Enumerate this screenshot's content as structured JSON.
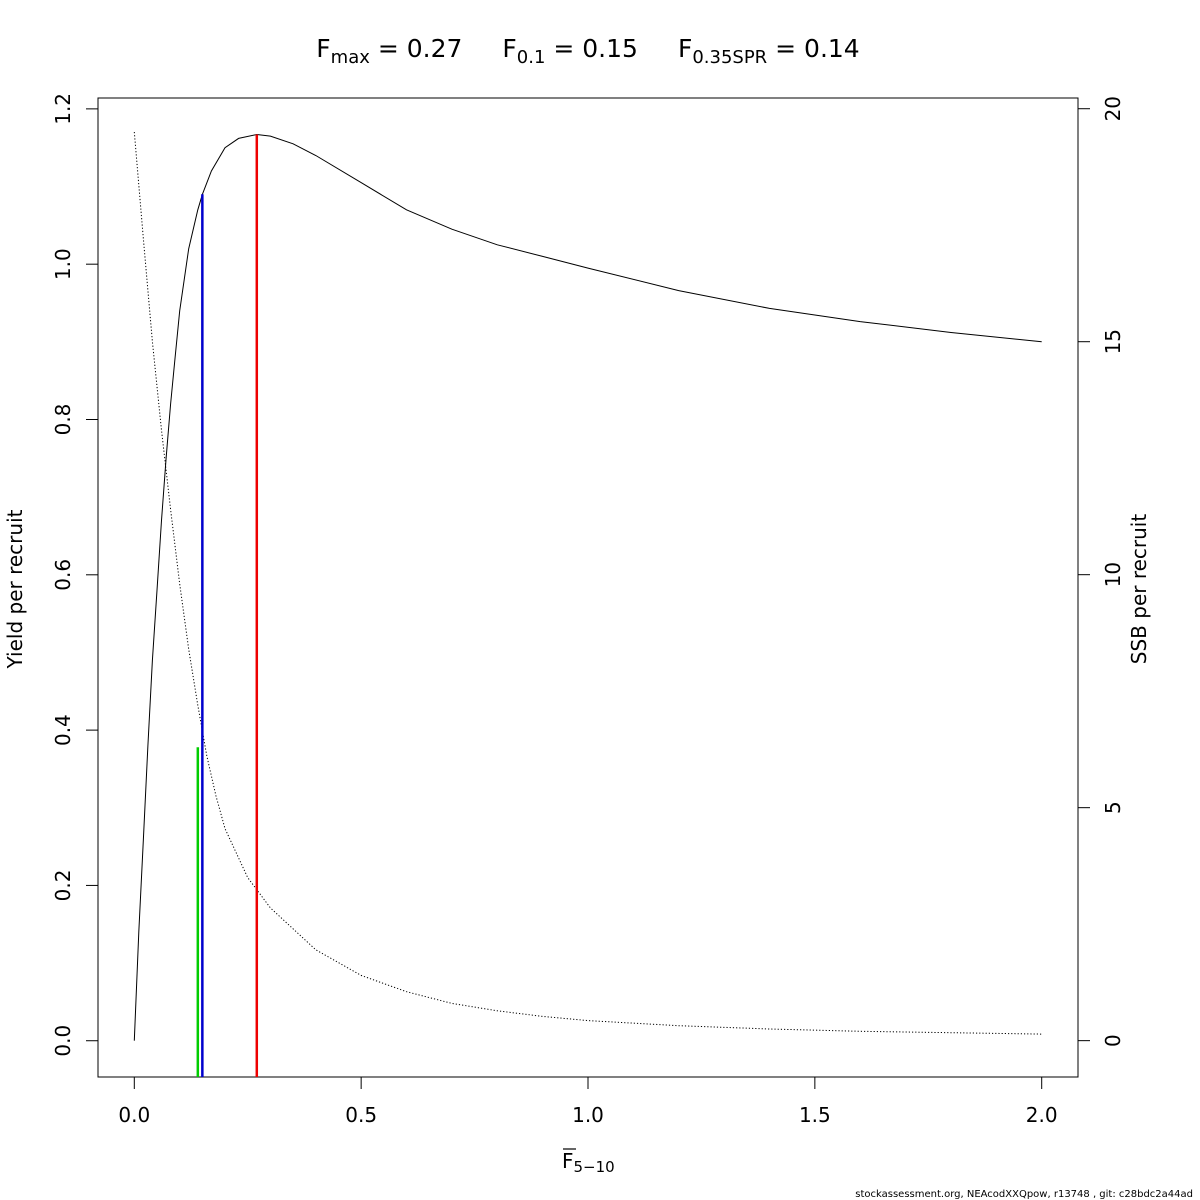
{
  "chart_data": {
    "type": "line",
    "title": {
      "fmax": {
        "main": "F",
        "sub": "max",
        "value": " = 0.27"
      },
      "f01": {
        "main": "F",
        "sub": "0.1",
        "value": " = 0.15"
      },
      "fspr": {
        "main": "F",
        "sub": "0.35SPR",
        "value": " = 0.14"
      }
    },
    "xlabel": {
      "main": "F",
      "sub": "5−10"
    },
    "ylabel": "Yield per recruit",
    "y2label": "SSB per recruit",
    "footer": "stockassessment.org, NEAcodXXQpow, r13748 , git: c28bdc2a44ad",
    "xlim": [
      -0.08,
      2.08
    ],
    "ylim": [
      -0.0467,
      1.214
    ],
    "y2lim": [
      -0.78,
      20.23
    ],
    "x_ticks": [
      {
        "value": 0.0,
        "label": "0.0"
      },
      {
        "value": 0.5,
        "label": "0.5"
      },
      {
        "value": 1.0,
        "label": "1.0"
      },
      {
        "value": 1.5,
        "label": "1.5"
      },
      {
        "value": 2.0,
        "label": "2.0"
      }
    ],
    "y_ticks": [
      {
        "value": 0.0,
        "label": "0.0"
      },
      {
        "value": 0.2,
        "label": "0.2"
      },
      {
        "value": 0.4,
        "label": "0.4"
      },
      {
        "value": 0.6,
        "label": "0.6"
      },
      {
        "value": 0.8,
        "label": "0.8"
      },
      {
        "value": 1.0,
        "label": "1.0"
      },
      {
        "value": 1.2,
        "label": "1.2"
      }
    ],
    "y2_ticks": [
      {
        "value": 0,
        "label": "0"
      },
      {
        "value": 5,
        "label": "5"
      },
      {
        "value": 10,
        "label": "10"
      },
      {
        "value": 15,
        "label": "15"
      },
      {
        "value": 20,
        "label": "20"
      }
    ],
    "series": [
      {
        "axis": "left",
        "style": "solid",
        "color": "#000000",
        "points": [
          [
            0.0,
            0.0
          ],
          [
            0.01,
            0.14
          ],
          [
            0.02,
            0.26
          ],
          [
            0.03,
            0.38
          ],
          [
            0.04,
            0.49
          ],
          [
            0.05,
            0.58
          ],
          [
            0.06,
            0.67
          ],
          [
            0.07,
            0.75
          ],
          [
            0.08,
            0.82
          ],
          [
            0.09,
            0.88
          ],
          [
            0.1,
            0.94
          ],
          [
            0.12,
            1.02
          ],
          [
            0.14,
            1.07
          ],
          [
            0.15,
            1.09
          ],
          [
            0.17,
            1.12
          ],
          [
            0.2,
            1.15
          ],
          [
            0.23,
            1.162
          ],
          [
            0.27,
            1.167
          ],
          [
            0.3,
            1.165
          ],
          [
            0.35,
            1.155
          ],
          [
            0.4,
            1.14
          ],
          [
            0.5,
            1.105
          ],
          [
            0.6,
            1.07
          ],
          [
            0.7,
            1.045
          ],
          [
            0.8,
            1.025
          ],
          [
            0.9,
            1.01
          ],
          [
            1.0,
            0.995
          ],
          [
            1.2,
            0.966
          ],
          [
            1.4,
            0.943
          ],
          [
            1.6,
            0.926
          ],
          [
            1.8,
            0.912
          ],
          [
            2.0,
            0.9
          ]
        ]
      },
      {
        "axis": "right",
        "style": "dotted",
        "color": "#000000",
        "points": [
          [
            0.0,
            19.5
          ],
          [
            0.02,
            17.2
          ],
          [
            0.04,
            15.0
          ],
          [
            0.06,
            13.1
          ],
          [
            0.08,
            11.4
          ],
          [
            0.1,
            9.8
          ],
          [
            0.12,
            8.4
          ],
          [
            0.14,
            7.2
          ],
          [
            0.16,
            6.1
          ],
          [
            0.18,
            5.25
          ],
          [
            0.2,
            4.55
          ],
          [
            0.25,
            3.5
          ],
          [
            0.3,
            2.85
          ],
          [
            0.4,
            1.95
          ],
          [
            0.5,
            1.4
          ],
          [
            0.6,
            1.05
          ],
          [
            0.7,
            0.8
          ],
          [
            0.8,
            0.64
          ],
          [
            0.9,
            0.52
          ],
          [
            1.0,
            0.43
          ],
          [
            1.2,
            0.32
          ],
          [
            1.4,
            0.25
          ],
          [
            1.6,
            0.2
          ],
          [
            1.8,
            0.17
          ],
          [
            2.0,
            0.14
          ]
        ]
      }
    ],
    "ref_lines": [
      {
        "name": "F0.35SPR",
        "x": 0.14,
        "y_top": 0.378,
        "color": "#00cd00"
      },
      {
        "name": "F0.1",
        "x": 0.15,
        "y_top": 1.09,
        "color": "#0000cd"
      },
      {
        "name": "Fmax",
        "x": 0.27,
        "y_top": 1.167,
        "color": "#ee0000"
      }
    ]
  }
}
